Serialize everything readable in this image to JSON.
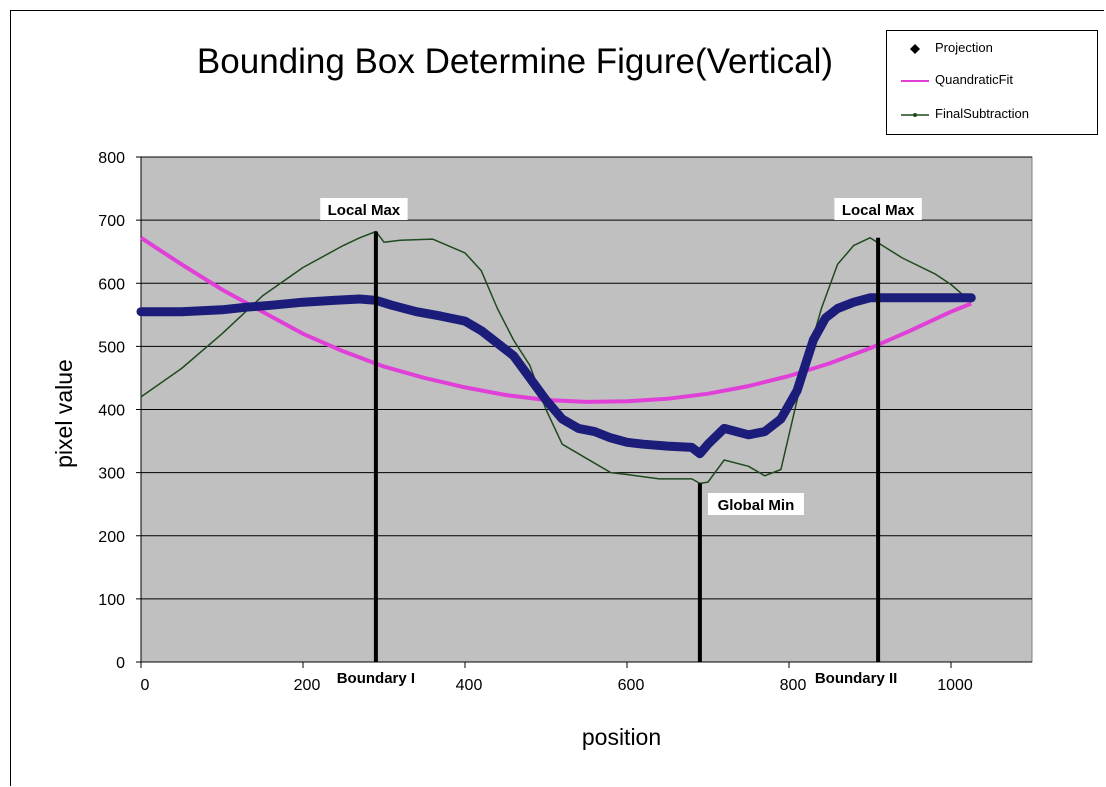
{
  "chart_data": {
    "type": "line",
    "title": "Bounding Box Determine Figure(Vertical)",
    "xlabel": "position",
    "ylabel": "pixel value",
    "xlim": [
      0,
      1100
    ],
    "ylim": [
      0,
      800
    ],
    "x_ticks": [
      0,
      200,
      400,
      600,
      800,
      1000
    ],
    "y_ticks": [
      0,
      100,
      200,
      300,
      400,
      500,
      600,
      700,
      800
    ],
    "grid": "horizontal",
    "legend_position": "top-right",
    "colors": {
      "plot_background": "#c0c0c0",
      "projection": "#1c1c7a",
      "quadratic_fit": "#e040d8",
      "final_subtraction": "#1f4a1f",
      "markers": "#000000"
    },
    "series": [
      {
        "name": "Projection",
        "x": [
          0,
          50,
          100,
          130,
          160,
          200,
          240,
          270,
          290,
          310,
          340,
          370,
          400,
          420,
          440,
          460,
          480,
          500,
          520,
          540,
          560,
          580,
          600,
          620,
          650,
          680,
          690,
          700,
          720,
          750,
          770,
          790,
          810,
          820,
          830,
          845,
          860,
          880,
          900,
          950,
          1000,
          1025
        ],
        "values": [
          555,
          555,
          558,
          562,
          565,
          570,
          573,
          575,
          573,
          565,
          555,
          548,
          540,
          525,
          505,
          485,
          450,
          415,
          385,
          370,
          365,
          355,
          348,
          345,
          342,
          340,
          330,
          345,
          370,
          360,
          365,
          385,
          430,
          470,
          510,
          545,
          560,
          570,
          577,
          577,
          577,
          577
        ]
      },
      {
        "name": "QuandraticFit",
        "x": [
          0,
          50,
          100,
          150,
          200,
          250,
          300,
          350,
          400,
          450,
          500,
          550,
          600,
          650,
          700,
          750,
          800,
          850,
          900,
          950,
          1000,
          1025
        ],
        "values": [
          672,
          630,
          590,
          555,
          520,
          492,
          468,
          450,
          435,
          423,
          415,
          412,
          413,
          417,
          425,
          437,
          453,
          473,
          497,
          525,
          555,
          568
        ]
      },
      {
        "name": "FinalSubtraction",
        "x": [
          0,
          50,
          100,
          150,
          200,
          250,
          270,
          290,
          300,
          320,
          360,
          400,
          420,
          440,
          460,
          480,
          500,
          520,
          540,
          560,
          580,
          600,
          640,
          680,
          690,
          700,
          720,
          750,
          770,
          790,
          800,
          820,
          840,
          860,
          880,
          900,
          940,
          980,
          1000,
          1025
        ],
        "values": [
          420,
          465,
          520,
          580,
          625,
          660,
          672,
          682,
          665,
          668,
          670,
          648,
          620,
          560,
          510,
          470,
          400,
          345,
          330,
          315,
          300,
          297,
          290,
          290,
          283,
          285,
          320,
          310,
          295,
          305,
          360,
          470,
          560,
          630,
          660,
          672,
          640,
          615,
          598,
          570
        ]
      }
    ],
    "annotations": [
      {
        "text": "Local Max",
        "x": 290
      },
      {
        "text": "Local Max",
        "x": 910
      },
      {
        "text": "Global Min",
        "x": 690
      },
      {
        "text": "Boundary I",
        "x": 290
      },
      {
        "text": "Boundary II",
        "x": 910
      }
    ],
    "markers": [
      {
        "x": 290,
        "y_top": 682
      },
      {
        "x": 690,
        "y_top": 283
      },
      {
        "x": 910,
        "y_top": 672
      }
    ]
  }
}
